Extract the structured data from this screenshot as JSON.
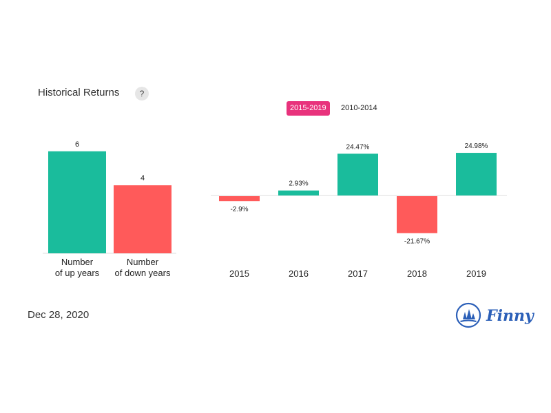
{
  "header": {
    "title": "Historical Returns",
    "help_label": "?"
  },
  "range_tabs": [
    {
      "label": "2015-2019",
      "active": true
    },
    {
      "label": "2010-2014",
      "active": false
    }
  ],
  "colors": {
    "positive": "#1abc9c",
    "negative": "#ff5a5a",
    "active_tab": "#e8327c",
    "axis": "#dddddd"
  },
  "chart_data": [
    {
      "type": "bar",
      "categories": [
        [
          "Number",
          "of up years"
        ],
        [
          "Number",
          "of down years"
        ]
      ],
      "values": [
        6,
        4
      ],
      "value_labels": [
        "6",
        "4"
      ]
    },
    {
      "type": "bar",
      "categories": [
        "2015",
        "2016",
        "2017",
        "2018",
        "2019"
      ],
      "values": [
        -2.9,
        2.93,
        24.47,
        -21.67,
        24.98
      ],
      "value_labels": [
        "-2.9%",
        "2.93%",
        "24.47%",
        "-21.67%",
        "24.98%"
      ],
      "unit": "%"
    }
  ],
  "footer": {
    "date": "Dec 28, 2020",
    "logo_text": "Finny"
  }
}
